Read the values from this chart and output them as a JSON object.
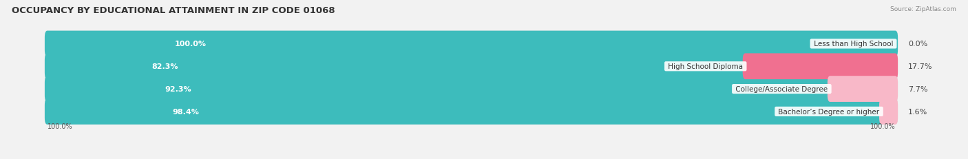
{
  "title": "OCCUPANCY BY EDUCATIONAL ATTAINMENT IN ZIP CODE 01068",
  "source": "Source: ZipAtlas.com",
  "categories": [
    "Less than High School",
    "High School Diploma",
    "College/Associate Degree",
    "Bachelor’s Degree or higher"
  ],
  "owner_values": [
    100.0,
    82.3,
    92.3,
    98.4
  ],
  "renter_values": [
    0.0,
    17.7,
    7.7,
    1.6
  ],
  "owner_color": "#3dbcbc",
  "renter_color": "#f07090",
  "renter_color_light": "#f8b8c8",
  "bg_color": "#f2f2f2",
  "row_bg_color": "#e4e4e4",
  "title_fontsize": 9.5,
  "label_fontsize": 8,
  "bar_height": 0.55,
  "x_left_label": "100.0%",
  "x_right_label": "100.0%"
}
